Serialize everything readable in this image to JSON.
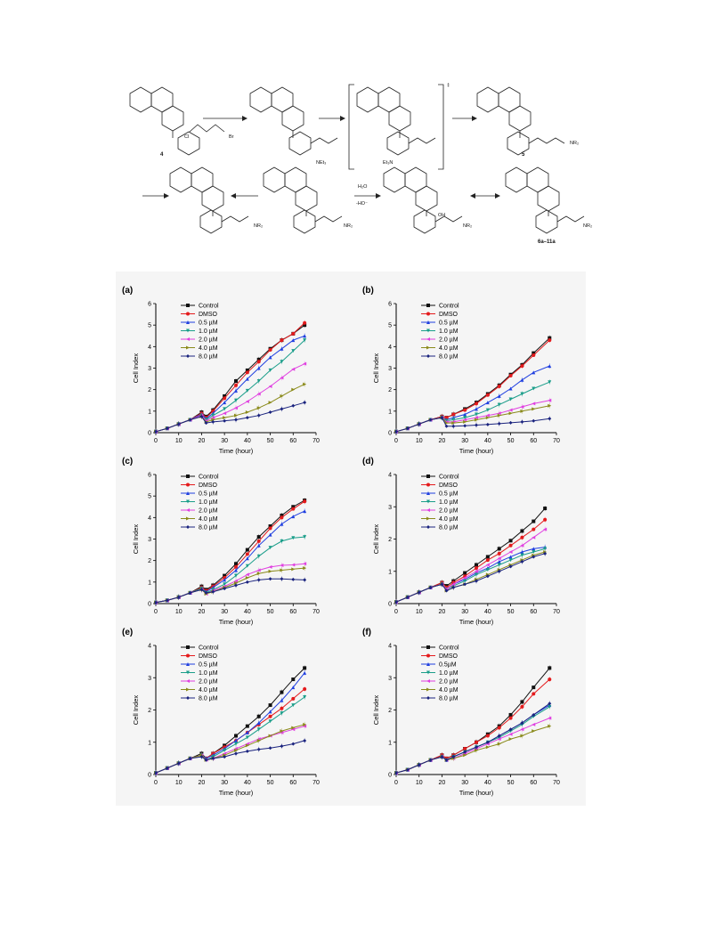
{
  "scheme": {
    "compound_labels": [
      "4",
      "5",
      "6a–11a"
    ],
    "reagent_text": [
      "Cl",
      "Br",
      "NEt₃",
      "Et₃N",
      "H₂O",
      "-HO⁻",
      "NR₂",
      "OH",
      "N",
      "H",
      "O"
    ],
    "bracket_charge": "‡"
  },
  "legend_labels": [
    "Control",
    "DMSO",
    "0.5 µM",
    "1.0 µM",
    "2.0 µM",
    "4.0 µM",
    "8.0 µM"
  ],
  "legend_labels_f": [
    "Control",
    "DMSO",
    "0.5µM",
    "1.0 µM",
    "2.0 µM",
    "4.0 µM",
    "8.0 µM"
  ],
  "colors": {
    "Control": "#111111",
    "DMSO": "#e41a1c",
    "0.5": "#1f3fe0",
    "1.0": "#1b9e8a",
    "2.0": "#e040e0",
    "4.0": "#8a8a1a",
    "8.0": "#1a237e"
  },
  "chart_data": [
    {
      "panel_label": "(a)",
      "type": "line",
      "xlabel": "Time (hour)",
      "ylabel": "Cell Index",
      "xlim": [
        0,
        70
      ],
      "ylim": [
        0,
        6
      ],
      "xticks": [
        0,
        10,
        20,
        30,
        40,
        50,
        60,
        70
      ],
      "yticks": [
        0,
        1,
        2,
        3,
        4,
        5,
        6
      ],
      "x": [
        0,
        5,
        10,
        15,
        20,
        22,
        25,
        30,
        35,
        40,
        45,
        50,
        55,
        60,
        65
      ],
      "series": [
        {
          "name": "Control",
          "values": [
            0.05,
            0.2,
            0.4,
            0.6,
            0.95,
            0.75,
            1.05,
            1.7,
            2.4,
            2.9,
            3.4,
            3.9,
            4.3,
            4.6,
            5.0
          ]
        },
        {
          "name": "DMSO",
          "values": [
            0.05,
            0.2,
            0.4,
            0.6,
            0.9,
            0.7,
            1.0,
            1.6,
            2.2,
            2.8,
            3.3,
            3.85,
            4.3,
            4.6,
            5.1
          ]
        },
        {
          "name": "0.5 µM",
          "values": [
            0.05,
            0.2,
            0.4,
            0.6,
            0.85,
            0.65,
            0.9,
            1.4,
            1.95,
            2.5,
            3.0,
            3.5,
            3.9,
            4.3,
            4.5
          ]
        },
        {
          "name": "1.0 µM",
          "values": [
            0.05,
            0.2,
            0.4,
            0.6,
            0.8,
            0.6,
            0.8,
            1.1,
            1.5,
            1.95,
            2.4,
            2.9,
            3.3,
            3.8,
            4.3
          ]
        },
        {
          "name": "2.0 µM",
          "values": [
            0.05,
            0.2,
            0.4,
            0.6,
            0.8,
            0.55,
            0.7,
            0.9,
            1.15,
            1.45,
            1.8,
            2.15,
            2.55,
            2.95,
            3.2
          ]
        },
        {
          "name": "4.0 µM",
          "values": [
            0.05,
            0.2,
            0.4,
            0.6,
            0.75,
            0.5,
            0.6,
            0.7,
            0.8,
            0.95,
            1.15,
            1.4,
            1.7,
            2.0,
            2.25
          ]
        },
        {
          "name": "8.0 µM",
          "values": [
            0.05,
            0.2,
            0.4,
            0.6,
            0.75,
            0.45,
            0.5,
            0.55,
            0.6,
            0.7,
            0.8,
            0.95,
            1.1,
            1.25,
            1.4
          ]
        }
      ]
    },
    {
      "panel_label": "(b)",
      "type": "line",
      "xlabel": "Time (hour)",
      "ylabel": "Cell Index",
      "xlim": [
        0,
        70
      ],
      "ylim": [
        0,
        6
      ],
      "xticks": [
        0,
        10,
        20,
        30,
        40,
        50,
        60,
        70
      ],
      "yticks": [
        0,
        1,
        2,
        3,
        4,
        5,
        6
      ],
      "x": [
        0,
        5,
        10,
        15,
        20,
        22,
        25,
        30,
        35,
        40,
        45,
        50,
        55,
        60,
        67
      ],
      "series": [
        {
          "name": "Control",
          "values": [
            0.05,
            0.2,
            0.4,
            0.6,
            0.75,
            0.7,
            0.85,
            1.1,
            1.4,
            1.8,
            2.2,
            2.7,
            3.15,
            3.7,
            4.4
          ]
        },
        {
          "name": "DMSO",
          "values": [
            0.05,
            0.2,
            0.4,
            0.6,
            0.75,
            0.7,
            0.85,
            1.05,
            1.35,
            1.75,
            2.15,
            2.65,
            3.1,
            3.6,
            4.3
          ]
        },
        {
          "name": "0.5 µM",
          "values": [
            0.05,
            0.2,
            0.4,
            0.6,
            0.7,
            0.6,
            0.7,
            0.85,
            1.1,
            1.4,
            1.7,
            2.05,
            2.45,
            2.8,
            3.1
          ]
        },
        {
          "name": "1.0 µM",
          "values": [
            0.05,
            0.2,
            0.4,
            0.6,
            0.7,
            0.55,
            0.6,
            0.7,
            0.85,
            1.05,
            1.3,
            1.55,
            1.8,
            2.05,
            2.35
          ]
        },
        {
          "name": "2.0 µM",
          "values": [
            0.05,
            0.2,
            0.4,
            0.6,
            0.7,
            0.5,
            0.5,
            0.6,
            0.7,
            0.8,
            0.9,
            1.05,
            1.2,
            1.35,
            1.5
          ]
        },
        {
          "name": "4.0 µM",
          "values": [
            0.05,
            0.2,
            0.4,
            0.6,
            0.7,
            0.45,
            0.45,
            0.5,
            0.6,
            0.7,
            0.8,
            0.9,
            1.0,
            1.1,
            1.25
          ]
        },
        {
          "name": "8.0 µM",
          "values": [
            0.05,
            0.2,
            0.4,
            0.6,
            0.7,
            0.3,
            0.3,
            0.32,
            0.35,
            0.38,
            0.42,
            0.46,
            0.5,
            0.55,
            0.65
          ]
        }
      ]
    },
    {
      "panel_label": "(c)",
      "type": "line",
      "xlabel": "Time (hour)",
      "ylabel": "Cell Index",
      "xlim": [
        0,
        70
      ],
      "ylim": [
        0,
        6
      ],
      "xticks": [
        0,
        10,
        20,
        30,
        40,
        50,
        60,
        70
      ],
      "yticks": [
        0,
        1,
        2,
        3,
        4,
        5,
        6
      ],
      "x": [
        0,
        5,
        10,
        15,
        20,
        22,
        25,
        30,
        35,
        40,
        45,
        50,
        55,
        60,
        65
      ],
      "series": [
        {
          "name": "Control",
          "values": [
            0.05,
            0.15,
            0.3,
            0.5,
            0.8,
            0.65,
            0.85,
            1.3,
            1.85,
            2.5,
            3.1,
            3.6,
            4.1,
            4.5,
            4.8
          ]
        },
        {
          "name": "DMSO",
          "values": [
            0.05,
            0.15,
            0.3,
            0.5,
            0.75,
            0.6,
            0.8,
            1.2,
            1.7,
            2.3,
            2.9,
            3.5,
            4.0,
            4.4,
            4.75
          ]
        },
        {
          "name": "0.5 µM",
          "values": [
            0.05,
            0.15,
            0.3,
            0.5,
            0.7,
            0.55,
            0.75,
            1.1,
            1.55,
            2.1,
            2.7,
            3.2,
            3.7,
            4.05,
            4.3
          ]
        },
        {
          "name": "1.0 µM",
          "values": [
            0.05,
            0.15,
            0.3,
            0.5,
            0.7,
            0.5,
            0.65,
            0.9,
            1.3,
            1.75,
            2.2,
            2.6,
            2.9,
            3.05,
            3.1
          ]
        },
        {
          "name": "2.0 µM",
          "values": [
            0.05,
            0.15,
            0.3,
            0.5,
            0.65,
            0.45,
            0.6,
            0.8,
            1.05,
            1.35,
            1.55,
            1.7,
            1.78,
            1.8,
            1.85
          ]
        },
        {
          "name": "4.0 µM",
          "values": [
            0.05,
            0.15,
            0.3,
            0.5,
            0.65,
            0.45,
            0.55,
            0.75,
            0.95,
            1.2,
            1.4,
            1.5,
            1.55,
            1.6,
            1.65
          ]
        },
        {
          "name": "8.0 µM",
          "values": [
            0.05,
            0.15,
            0.3,
            0.5,
            0.65,
            0.5,
            0.55,
            0.7,
            0.85,
            1.0,
            1.1,
            1.15,
            1.15,
            1.12,
            1.1
          ]
        }
      ]
    },
    {
      "panel_label": "(d)",
      "type": "line",
      "xlabel": "Time (hour)",
      "ylabel": "Cell Index",
      "xlim": [
        0,
        70
      ],
      "ylim": [
        0,
        4
      ],
      "xticks": [
        0,
        10,
        20,
        30,
        40,
        50,
        60,
        70
      ],
      "yticks": [
        0,
        1,
        2,
        3,
        4
      ],
      "x": [
        0,
        5,
        10,
        15,
        20,
        22,
        25,
        30,
        35,
        40,
        45,
        50,
        55,
        60,
        65
      ],
      "series": [
        {
          "name": "Control",
          "values": [
            0.05,
            0.2,
            0.35,
            0.5,
            0.65,
            0.55,
            0.7,
            0.95,
            1.2,
            1.45,
            1.7,
            1.95,
            2.25,
            2.55,
            2.95
          ]
        },
        {
          "name": "DMSO",
          "values": [
            0.05,
            0.2,
            0.35,
            0.5,
            0.65,
            0.5,
            0.65,
            0.85,
            1.1,
            1.35,
            1.55,
            1.8,
            2.05,
            2.3,
            2.6
          ]
        },
        {
          "name": "0.5 µM",
          "values": [
            0.05,
            0.2,
            0.35,
            0.5,
            0.6,
            0.45,
            0.6,
            0.75,
            0.95,
            1.1,
            1.3,
            1.45,
            1.6,
            1.7,
            1.75
          ]
        },
        {
          "name": "1.0 µM",
          "values": [
            0.05,
            0.2,
            0.35,
            0.5,
            0.6,
            0.45,
            0.55,
            0.7,
            0.9,
            1.05,
            1.2,
            1.35,
            1.5,
            1.6,
            1.7
          ]
        },
        {
          "name": "2.0 µM",
          "values": [
            0.05,
            0.2,
            0.35,
            0.5,
            0.6,
            0.45,
            0.6,
            0.8,
            1.0,
            1.2,
            1.4,
            1.6,
            1.8,
            2.05,
            2.3
          ]
        },
        {
          "name": "4.0 µM",
          "values": [
            0.05,
            0.2,
            0.35,
            0.5,
            0.6,
            0.4,
            0.5,
            0.6,
            0.75,
            0.9,
            1.05,
            1.2,
            1.35,
            1.5,
            1.6
          ]
        },
        {
          "name": "8.0 µM",
          "values": [
            0.05,
            0.2,
            0.35,
            0.5,
            0.6,
            0.4,
            0.5,
            0.6,
            0.7,
            0.85,
            1.0,
            1.15,
            1.3,
            1.45,
            1.55
          ]
        }
      ]
    },
    {
      "panel_label": "(e)",
      "type": "line",
      "xlabel": "Time (hour)",
      "ylabel": "Cell Index",
      "xlim": [
        0,
        70
      ],
      "ylim": [
        0,
        4
      ],
      "xticks": [
        0,
        10,
        20,
        30,
        40,
        50,
        60,
        70
      ],
      "yticks": [
        0,
        1,
        2,
        3,
        4
      ],
      "x": [
        0,
        5,
        10,
        15,
        20,
        22,
        25,
        30,
        35,
        40,
        45,
        50,
        55,
        60,
        65
      ],
      "series": [
        {
          "name": "Control",
          "values": [
            0.05,
            0.2,
            0.35,
            0.5,
            0.65,
            0.5,
            0.65,
            0.9,
            1.2,
            1.5,
            1.8,
            2.15,
            2.55,
            2.95,
            3.3
          ]
        },
        {
          "name": "DMSO",
          "values": [
            0.05,
            0.2,
            0.35,
            0.5,
            0.6,
            0.5,
            0.65,
            0.85,
            1.05,
            1.3,
            1.55,
            1.8,
            2.05,
            2.35,
            2.65
          ]
        },
        {
          "name": "0.5 µM",
          "values": [
            0.05,
            0.2,
            0.35,
            0.5,
            0.6,
            0.5,
            0.6,
            0.8,
            1.05,
            1.3,
            1.6,
            1.95,
            2.3,
            2.7,
            3.15
          ]
        },
        {
          "name": "1.0 µM",
          "values": [
            0.05,
            0.2,
            0.35,
            0.5,
            0.6,
            0.45,
            0.55,
            0.75,
            0.95,
            1.15,
            1.4,
            1.65,
            1.9,
            2.15,
            2.4
          ]
        },
        {
          "name": "2.0 µM",
          "values": [
            0.05,
            0.2,
            0.35,
            0.5,
            0.6,
            0.45,
            0.5,
            0.65,
            0.8,
            0.95,
            1.1,
            1.2,
            1.3,
            1.4,
            1.5
          ]
        },
        {
          "name": "4.0 µM",
          "values": [
            0.05,
            0.2,
            0.35,
            0.5,
            0.6,
            0.45,
            0.5,
            0.6,
            0.75,
            0.9,
            1.05,
            1.2,
            1.35,
            1.45,
            1.55
          ]
        },
        {
          "name": "8.0 µM",
          "values": [
            0.05,
            0.2,
            0.35,
            0.5,
            0.55,
            0.45,
            0.5,
            0.55,
            0.65,
            0.72,
            0.78,
            0.82,
            0.88,
            0.95,
            1.05
          ]
        }
      ]
    },
    {
      "panel_label": "(f)",
      "type": "line",
      "xlabel": "Time (hour)",
      "ylabel": "Cell Index",
      "xlim": [
        0,
        70
      ],
      "ylim": [
        0,
        4
      ],
      "xticks": [
        0,
        10,
        20,
        30,
        40,
        50,
        60,
        70
      ],
      "yticks": [
        0,
        1,
        2,
        3,
        4
      ],
      "x": [
        0,
        5,
        10,
        15,
        20,
        22,
        25,
        30,
        35,
        40,
        45,
        50,
        55,
        60,
        67
      ],
      "series": [
        {
          "name": "Control",
          "values": [
            0.05,
            0.15,
            0.3,
            0.45,
            0.6,
            0.5,
            0.6,
            0.8,
            1.0,
            1.25,
            1.5,
            1.85,
            2.25,
            2.7,
            3.3
          ]
        },
        {
          "name": "DMSO",
          "values": [
            0.05,
            0.15,
            0.3,
            0.45,
            0.6,
            0.5,
            0.6,
            0.8,
            1.0,
            1.2,
            1.45,
            1.75,
            2.1,
            2.5,
            2.95
          ]
        },
        {
          "name": "0.5µM",
          "values": [
            0.05,
            0.15,
            0.3,
            0.45,
            0.55,
            0.45,
            0.55,
            0.7,
            0.85,
            1.0,
            1.2,
            1.4,
            1.6,
            1.85,
            2.15
          ]
        },
        {
          "name": "1.0 µM",
          "values": [
            0.05,
            0.15,
            0.3,
            0.45,
            0.55,
            0.45,
            0.55,
            0.7,
            0.85,
            1.0,
            1.15,
            1.35,
            1.55,
            1.8,
            2.1
          ]
        },
        {
          "name": "2.0 µM",
          "values": [
            0.05,
            0.15,
            0.3,
            0.45,
            0.55,
            0.45,
            0.5,
            0.65,
            0.8,
            0.95,
            1.1,
            1.25,
            1.4,
            1.55,
            1.75
          ]
        },
        {
          "name": "4.0 µM",
          "values": [
            0.05,
            0.15,
            0.3,
            0.45,
            0.55,
            0.45,
            0.5,
            0.6,
            0.75,
            0.85,
            0.95,
            1.1,
            1.2,
            1.35,
            1.5
          ]
        },
        {
          "name": "8.0 µM",
          "values": [
            0.05,
            0.15,
            0.3,
            0.45,
            0.55,
            0.45,
            0.55,
            0.7,
            0.85,
            1.0,
            1.2,
            1.4,
            1.6,
            1.85,
            2.2
          ]
        }
      ]
    }
  ]
}
